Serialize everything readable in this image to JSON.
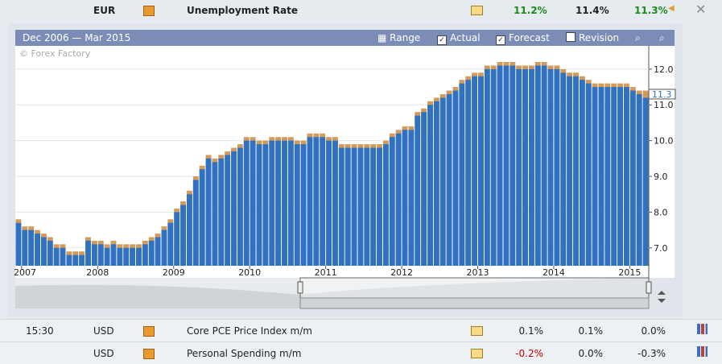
{
  "header_row": {
    "currency": "EUR",
    "event": "Unemployment Rate",
    "actual": "11.2%",
    "forecast": "11.4%",
    "previous": "11.3%"
  },
  "chart_toolbar": {
    "range_text": "Dec 2006 — Mar 2015",
    "range_button": "Range",
    "revision_button": "Revision"
  },
  "chart_data": {
    "type": "bar",
    "watermark": "© Forex Factory",
    "categories": [
      null,
      "2007",
      null,
      null,
      null,
      null,
      null,
      null,
      null,
      null,
      null,
      null,
      null,
      "2008",
      null,
      null,
      null,
      null,
      null,
      null,
      null,
      null,
      null,
      null,
      null,
      "2009",
      null,
      null,
      null,
      null,
      null,
      null,
      null,
      null,
      null,
      null,
      null,
      "2010",
      null,
      null,
      null,
      null,
      null,
      null,
      null,
      null,
      null,
      null,
      null,
      "2011",
      null,
      null,
      null,
      null,
      null,
      null,
      null,
      null,
      null,
      null,
      null,
      "2012",
      null,
      null,
      null,
      null,
      null,
      null,
      null,
      null,
      null,
      null,
      null,
      "2013",
      null,
      null,
      null,
      null,
      null,
      null,
      null,
      null,
      null,
      null,
      null,
      "2014",
      null,
      null,
      null,
      null,
      null,
      null,
      null,
      null,
      null,
      null,
      null,
      "2015",
      null,
      null
    ],
    "series": [
      {
        "name": "Actual",
        "color": "#2f72c2",
        "values": [
          7.7,
          7.5,
          7.5,
          7.4,
          7.3,
          7.2,
          7.0,
          7.0,
          6.8,
          6.8,
          6.8,
          7.2,
          7.1,
          7.1,
          7.0,
          7.1,
          7.0,
          7.0,
          7.0,
          7.0,
          7.1,
          7.2,
          7.3,
          7.5,
          7.7,
          8.0,
          8.2,
          8.5,
          8.9,
          9.2,
          9.5,
          9.4,
          9.5,
          9.6,
          9.7,
          9.8,
          10.0,
          10.0,
          9.9,
          9.9,
          10.0,
          10.0,
          10.0,
          10.0,
          9.9,
          9.9,
          10.1,
          10.1,
          10.1,
          10.0,
          10.0,
          9.8,
          9.8,
          9.8,
          9.8,
          9.8,
          9.8,
          9.8,
          9.9,
          10.1,
          10.2,
          10.3,
          10.3,
          10.7,
          10.8,
          11.0,
          11.1,
          11.2,
          11.3,
          11.4,
          11.6,
          11.7,
          11.8,
          11.8,
          12.0,
          12.0,
          12.1,
          12.1,
          12.1,
          12.0,
          12.0,
          12.0,
          12.1,
          12.1,
          12.0,
          12.0,
          11.9,
          11.8,
          11.8,
          11.7,
          11.6,
          11.5,
          11.5,
          11.5,
          11.5,
          11.5,
          11.5,
          11.4,
          11.3,
          11.2
        ]
      },
      {
        "name": "Forecast",
        "color": "#d39a5a",
        "values": [
          7.8,
          7.6,
          7.6,
          7.5,
          7.4,
          7.3,
          7.1,
          7.1,
          6.9,
          6.9,
          6.9,
          7.3,
          7.2,
          7.2,
          7.1,
          7.2,
          7.1,
          7.1,
          7.1,
          7.1,
          7.2,
          7.3,
          7.4,
          7.6,
          7.8,
          8.1,
          8.3,
          8.6,
          9.0,
          9.3,
          9.6,
          9.5,
          9.6,
          9.7,
          9.8,
          9.9,
          10.1,
          10.1,
          10.0,
          10.0,
          10.1,
          10.1,
          10.1,
          10.1,
          10.0,
          10.0,
          10.2,
          10.2,
          10.2,
          10.1,
          10.1,
          9.9,
          9.9,
          9.9,
          9.9,
          9.9,
          9.9,
          9.9,
          10.0,
          10.2,
          10.3,
          10.4,
          10.4,
          10.8,
          10.9,
          11.1,
          11.2,
          11.3,
          11.4,
          11.5,
          11.7,
          11.8,
          11.9,
          11.9,
          12.1,
          12.1,
          12.2,
          12.2,
          12.2,
          12.1,
          12.1,
          12.1,
          12.2,
          12.2,
          12.1,
          12.1,
          12.0,
          11.9,
          11.9,
          11.8,
          11.7,
          11.6,
          11.6,
          11.6,
          11.6,
          11.6,
          11.6,
          11.5,
          11.4,
          11.4
        ]
      }
    ],
    "ylim": [
      6.5,
      12.65
    ],
    "yticks": [
      {
        "value": 7,
        "label": "7.0"
      },
      {
        "value": 8,
        "label": "8.0"
      },
      {
        "value": 9,
        "label": "9.0"
      },
      {
        "value": 10,
        "label": "10.0"
      },
      {
        "value": 11,
        "label": "11.0"
      },
      {
        "value": 12,
        "label": "12.0"
      }
    ],
    "grid": true,
    "marker": {
      "value": 11.3,
      "label": "11.3"
    }
  },
  "rows": [
    {
      "time": "15:30",
      "currency": "USD",
      "event": "Core PCE Price Index m/m",
      "actual": "0.1%",
      "forecast": "0.1%",
      "previous": "0.0%"
    },
    {
      "time": null,
      "currency": "USD",
      "event": "Personal Spending m/m",
      "actual": "-0.2%",
      "forecast": "0.0%",
      "previous": "-0.3%"
    }
  ]
}
